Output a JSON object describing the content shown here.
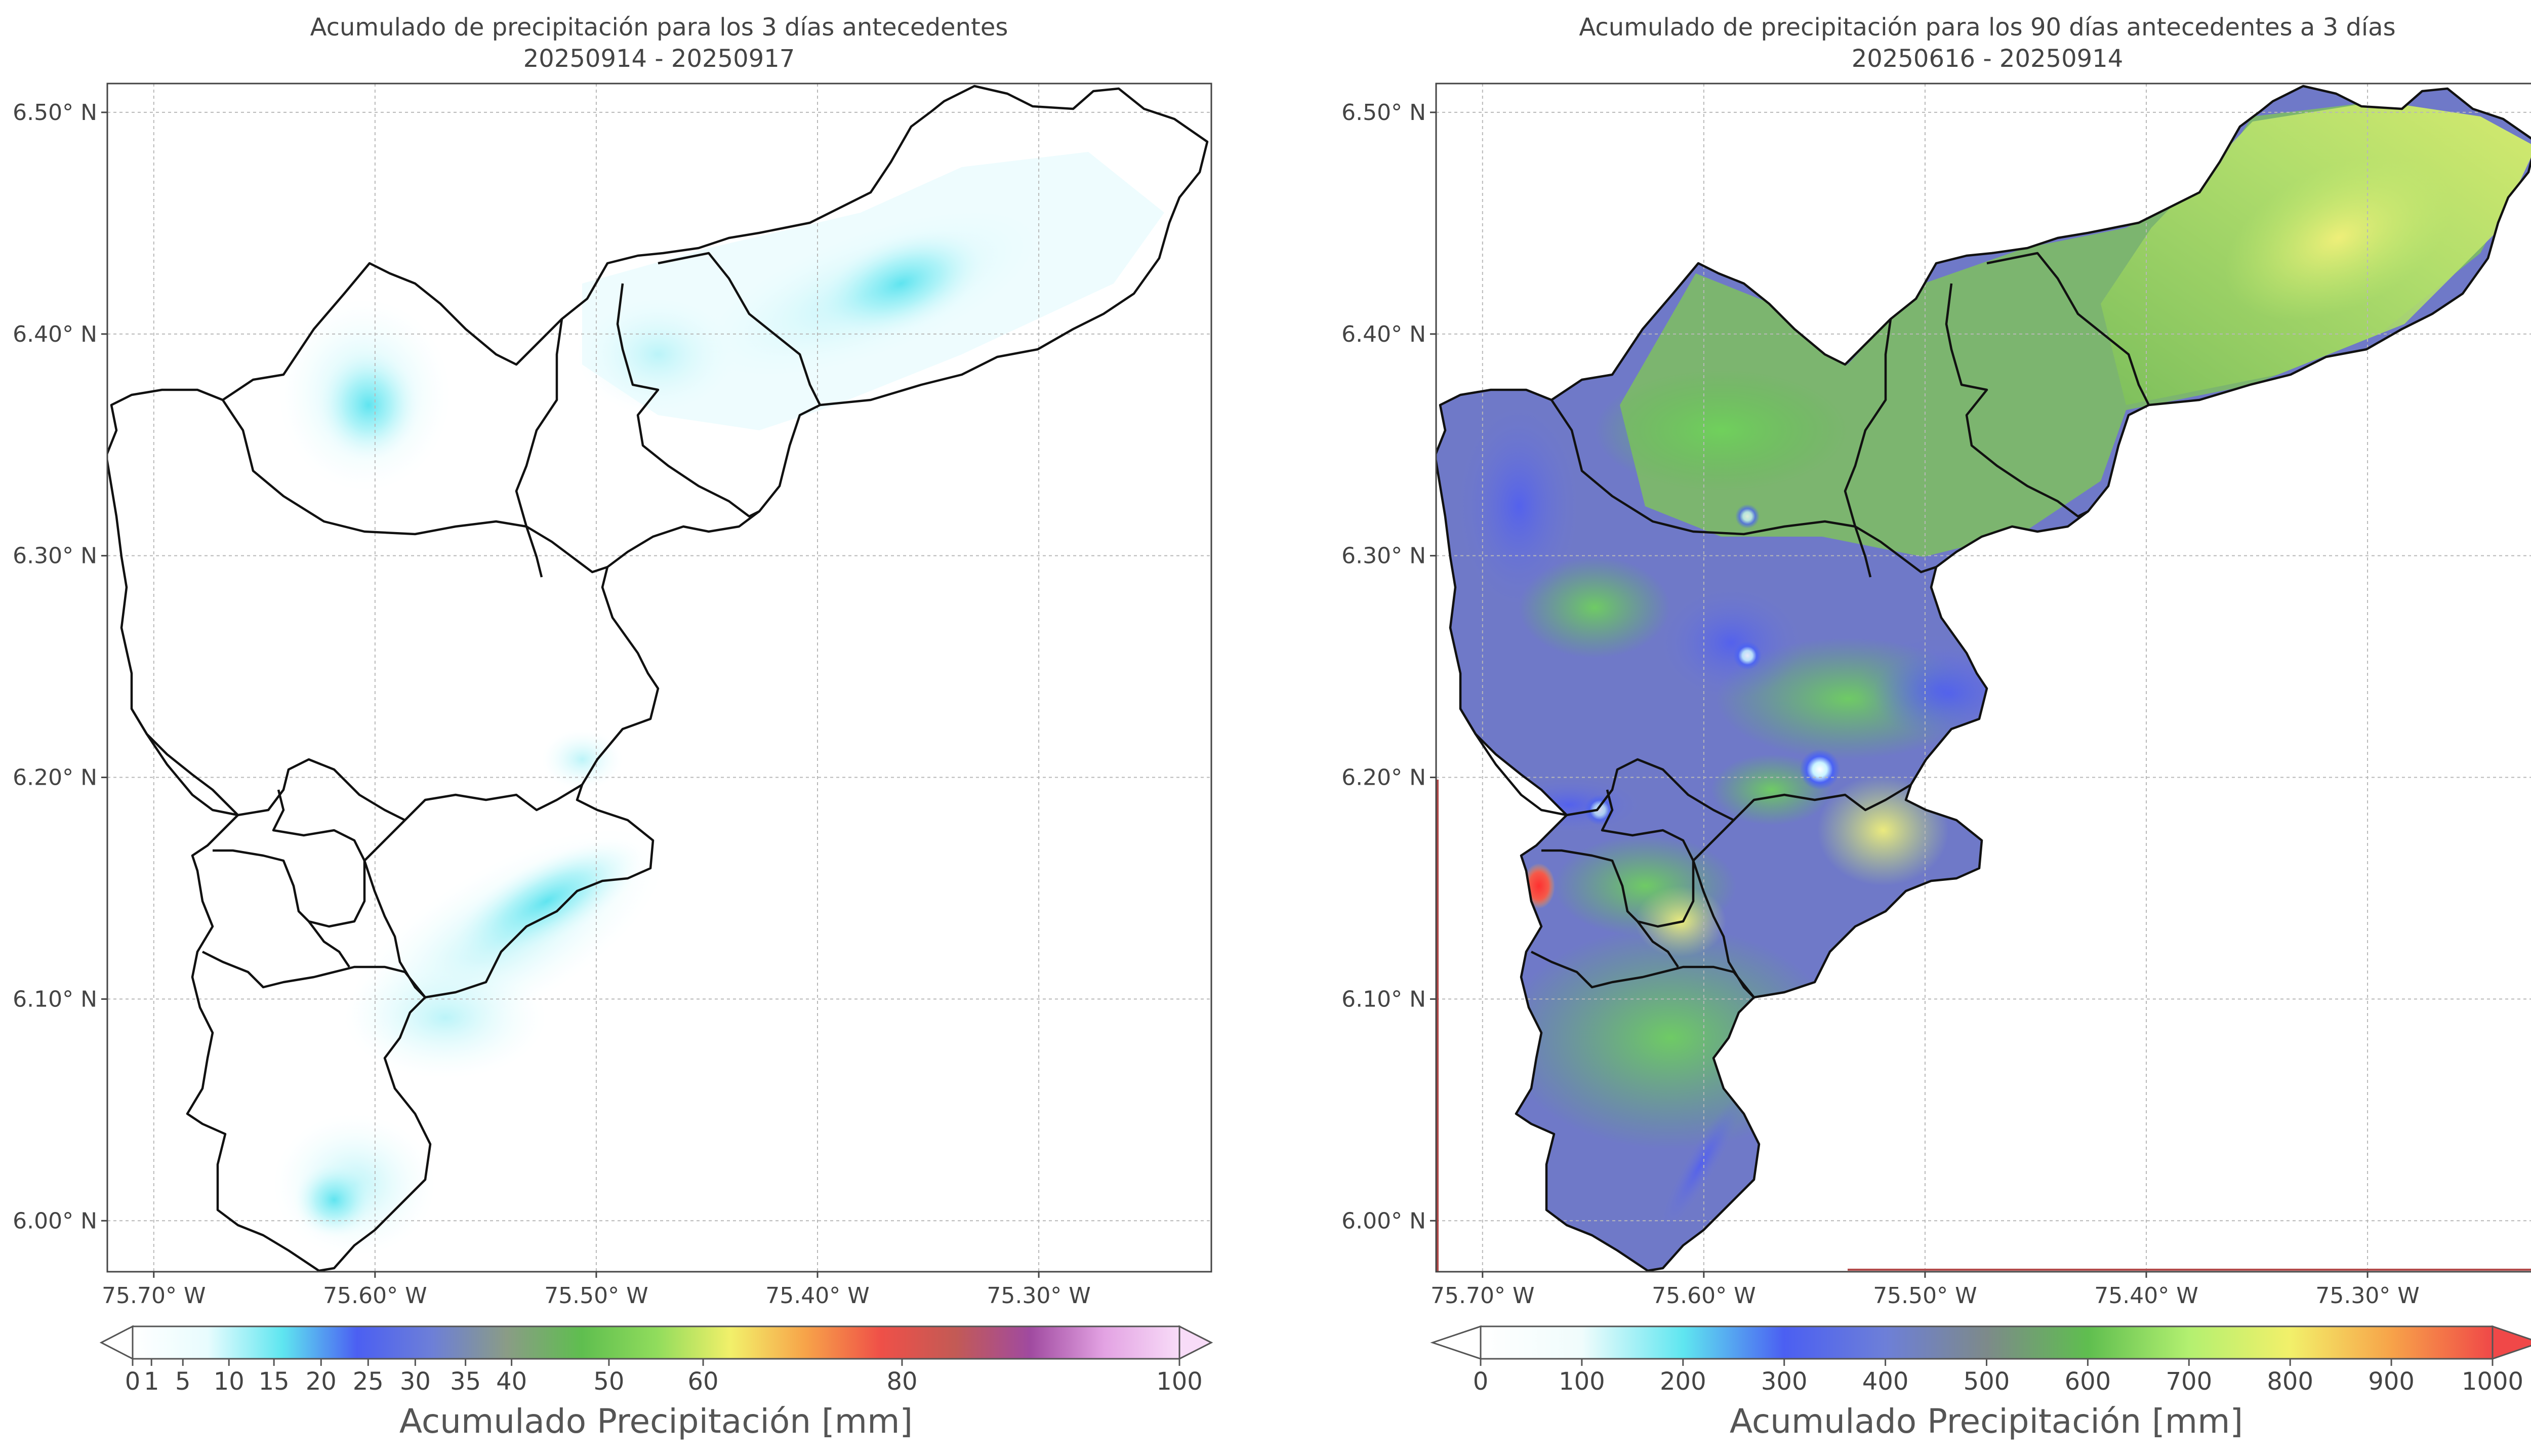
{
  "maps": [
    {
      "id": "left",
      "title_line1": "Acumulado de precipitación para los 3 días antecedentes",
      "title_line2": "20250914 - 20250917",
      "colorbar_title": "Acumulado Precipitación [mm]",
      "colorbar_ticks": [
        "0",
        "1",
        "5",
        "10",
        "15",
        "20",
        "25",
        "30",
        "35",
        "40",
        "50",
        "60",
        "80",
        "100"
      ],
      "colorbar_colors": [
        "#ffffff",
        "#e8fcfe",
        "#5fe6f0",
        "#4b5ff2",
        "#6d7fd8",
        "#8a9c86",
        "#5fbe4f",
        "#90dc5c",
        "#f2f06a",
        "#f7a349",
        "#ef5048",
        "#c35a55",
        "#a04aa0",
        "#e3a3e3",
        "#f8dcf8"
      ]
    },
    {
      "id": "right",
      "title_line1": "Acumulado de precipitación para los 90 días antecedentes a 3 días",
      "title_line2": "20250616 - 20250914",
      "colorbar_title": "Acumulado Precipitación [mm]",
      "colorbar_ticks": [
        "0",
        "100",
        "200",
        "300",
        "400",
        "500",
        "600",
        "700",
        "800",
        "900",
        "1000"
      ],
      "colorbar_colors": [
        "#ffffff",
        "#f0fcfc",
        "#5fe6f0",
        "#4b5ff2",
        "#6d7fd8",
        "#7d8a8a",
        "#5fbe4f",
        "#b3f070",
        "#f2f06a",
        "#f7a349",
        "#f04848"
      ]
    }
  ],
  "axes": {
    "lat_ticks": [
      "6.50° N",
      "6.40° N",
      "6.30° N",
      "6.20° N",
      "6.10° N",
      "6.00° N"
    ],
    "lon_ticks": [
      "75.70° W",
      "75.60° W",
      "75.50° W",
      "75.40° W",
      "75.30° W"
    ]
  },
  "map_data": {
    "lat_values": [
      6.5,
      6.4,
      6.3,
      6.2,
      6.1,
      6.0
    ],
    "lon_values": [
      -75.7,
      -75.6,
      -75.5,
      -75.4,
      -75.3
    ],
    "lat_range": [
      5.977,
      6.513
    ],
    "lon_range": [
      -75.721,
      -75.222
    ],
    "left_hotspots": [
      {
        "lat": 6.37,
        "lon": -75.6,
        "value_mm": 5
      },
      {
        "lat": 6.16,
        "lon": -75.52,
        "value_mm": 5
      },
      {
        "lat": 6.01,
        "lon": -75.6,
        "value_mm": 4
      }
    ],
    "right_hotspots": [
      {
        "lat": 6.15,
        "lon": -75.67,
        "value_mm": 1000
      },
      {
        "lat": 6.2,
        "lon": -75.545,
        "value_mm": 120
      },
      {
        "lat": 6.25,
        "lon": -75.57,
        "value_mm": 150
      },
      {
        "lat": 6.315,
        "lon": -75.57,
        "value_mm": 200
      },
      {
        "lat": 6.44,
        "lon": -75.3,
        "value_mm": 700
      },
      {
        "lat": 6.18,
        "lon": -75.49,
        "value_mm": 700
      }
    ]
  }
}
